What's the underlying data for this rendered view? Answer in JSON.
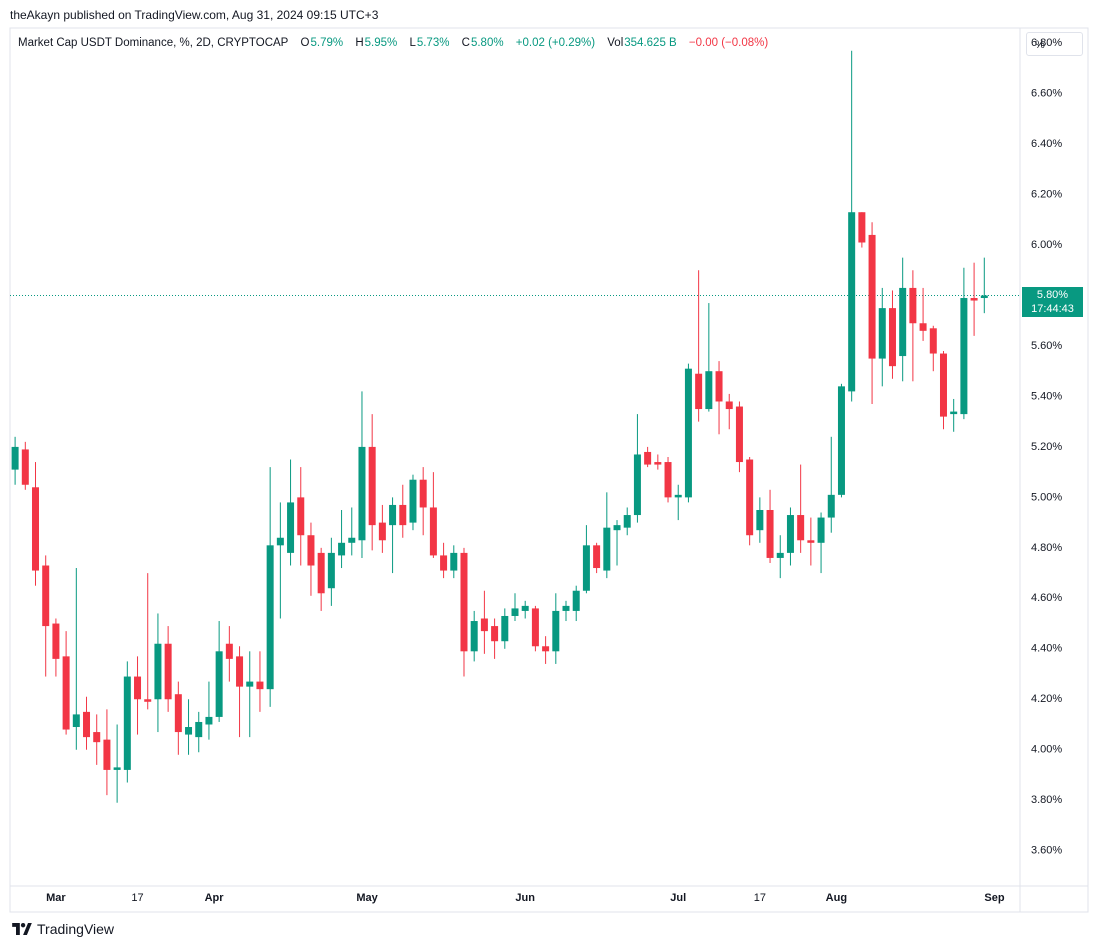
{
  "header": "theAkayn published on TradingView.com, Aug 31, 2024 09:15 UTC+3",
  "footer": "TradingView",
  "chart_data": {
    "type": "candlestick",
    "title": "Market Cap USDT Dominance, %, 2D, CRYPTOCAP",
    "legend": {
      "o_label": "O",
      "o": "5.79%",
      "h_label": "H",
      "h": "5.95%",
      "l_label": "L",
      "l": "5.73%",
      "c_label": "C",
      "c": "5.80%",
      "change": "+0.02 (+0.29%)",
      "vol_label": "Vol",
      "vol": "354.625 B",
      "vol_change": "−0.00 (−0.08%)"
    },
    "scale_button": "%",
    "up_color": "#089981",
    "down_color": "#f23645",
    "x": [
      "02-22",
      "02-24",
      "02-26",
      "02-28",
      "03-01",
      "03-03",
      "03-05",
      "03-07",
      "03-09",
      "03-11",
      "03-13",
      "03-15",
      "03-17",
      "03-19",
      "03-21",
      "03-23",
      "03-25",
      "03-27",
      "03-29",
      "03-31",
      "04-02",
      "04-04",
      "04-06",
      "04-08",
      "04-10",
      "04-12",
      "04-14",
      "04-16",
      "04-18",
      "04-20",
      "04-22",
      "04-24",
      "04-26",
      "04-28",
      "04-30",
      "05-02",
      "05-04",
      "05-06",
      "05-08",
      "05-10",
      "05-12",
      "05-14",
      "05-16",
      "05-18",
      "05-20",
      "05-22",
      "05-24",
      "05-26",
      "05-28",
      "05-30",
      "06-01",
      "06-03",
      "06-05",
      "06-07",
      "06-09",
      "06-11",
      "06-13",
      "06-15",
      "06-17",
      "06-19",
      "06-21",
      "06-23",
      "06-25",
      "06-27",
      "06-29",
      "07-01",
      "07-03",
      "07-05",
      "07-07",
      "07-09",
      "07-11",
      "07-13",
      "07-15",
      "07-17",
      "07-19",
      "07-21",
      "07-23",
      "07-25",
      "07-27",
      "07-29",
      "07-31",
      "08-02",
      "08-04",
      "08-06",
      "08-08",
      "08-10",
      "08-12",
      "08-14",
      "08-16",
      "08-18",
      "08-20",
      "08-22",
      "08-24",
      "08-26",
      "08-28",
      "08-30"
    ],
    "open": [
      5.11,
      5.19,
      5.04,
      4.73,
      4.5,
      4.37,
      4.09,
      4.15,
      4.07,
      4.04,
      3.92,
      3.92,
      4.29,
      4.2,
      4.2,
      4.42,
      4.22,
      4.06,
      4.05,
      4.1,
      4.13,
      4.42,
      4.37,
      4.25,
      4.27,
      4.24,
      4.81,
      4.78,
      5.0,
      4.85,
      4.78,
      4.64,
      4.77,
      4.82,
      4.83,
      5.2,
      4.9,
      4.89,
      4.97,
      4.9,
      5.07,
      4.96,
      4.77,
      4.71,
      4.78,
      4.39,
      4.52,
      4.49,
      4.43,
      4.53,
      4.55,
      4.56,
      4.41,
      4.39,
      4.55,
      4.55,
      4.63,
      4.81,
      4.71,
      4.87,
      4.88,
      4.93,
      5.18,
      5.14,
      5.14,
      5.0,
      5.0,
      5.49,
      5.35,
      5.5,
      5.38,
      5.36,
      5.15,
      4.87,
      4.95,
      4.76,
      4.78,
      4.93,
      4.83,
      4.82,
      4.92,
      5.01,
      5.42,
      6.13,
      6.04,
      5.55,
      5.75,
      5.56,
      5.83,
      5.69,
      5.67,
      5.57,
      5.33,
      5.33,
      5.79,
      5.79
    ],
    "high": [
      5.24,
      5.22,
      5.14,
      4.77,
      4.52,
      4.47,
      4.72,
      4.21,
      4.14,
      4.16,
      4.1,
      4.35,
      4.37,
      4.7,
      4.54,
      4.49,
      4.27,
      4.2,
      4.15,
      4.27,
      4.51,
      4.49,
      4.41,
      4.39,
      4.39,
      5.12,
      4.98,
      5.15,
      5.12,
      4.9,
      4.8,
      4.84,
      4.95,
      4.96,
      5.42,
      5.33,
      4.97,
      5.0,
      5.05,
      5.09,
      5.12,
      5.1,
      4.82,
      4.81,
      4.8,
      4.55,
      4.63,
      4.52,
      4.56,
      4.62,
      4.59,
      4.57,
      4.45,
      4.62,
      4.59,
      4.65,
      4.89,
      4.82,
      5.02,
      4.91,
      4.96,
      5.33,
      5.2,
      5.17,
      5.16,
      5.05,
      5.53,
      5.9,
      5.77,
      5.54,
      5.41,
      5.38,
      5.16,
      5.0,
      5.03,
      4.85,
      4.96,
      5.13,
      4.92,
      4.94,
      5.24,
      5.45,
      6.77,
      6.13,
      6.09,
      5.83,
      5.82,
      5.95,
      5.9,
      5.83,
      5.68,
      5.58,
      5.39,
      5.91,
      5.93,
      5.95
    ],
    "low": [
      5.05,
      5.03,
      4.65,
      4.29,
      4.29,
      4.06,
      4.0,
      4.0,
      3.94,
      3.82,
      3.79,
      3.87,
      4.06,
      4.16,
      4.07,
      4.15,
      3.98,
      3.98,
      3.99,
      4.04,
      4.11,
      4.27,
      4.05,
      4.05,
      4.15,
      4.17,
      4.52,
      4.73,
      4.73,
      4.61,
      4.55,
      4.57,
      4.72,
      4.77,
      4.76,
      4.79,
      4.78,
      4.7,
      4.84,
      4.87,
      4.85,
      4.76,
      4.68,
      4.68,
      4.29,
      4.35,
      4.38,
      4.36,
      4.4,
      4.51,
      4.52,
      4.39,
      4.34,
      4.34,
      4.51,
      4.51,
      4.62,
      4.7,
      4.68,
      4.73,
      4.85,
      4.9,
      5.12,
      5.11,
      4.98,
      4.91,
      4.98,
      5.3,
      5.34,
      5.25,
      5.27,
      5.1,
      4.81,
      4.82,
      4.74,
      4.68,
      4.73,
      4.78,
      4.73,
      4.7,
      4.86,
      5.0,
      5.38,
      5.99,
      5.37,
      5.44,
      5.47,
      5.46,
      5.46,
      5.62,
      5.5,
      5.27,
      5.26,
      5.31,
      5.64,
      5.73
    ],
    "close": [
      5.2,
      5.05,
      4.71,
      4.49,
      4.36,
      4.08,
      4.14,
      4.05,
      4.03,
      3.92,
      3.93,
      4.29,
      4.2,
      4.19,
      4.42,
      4.2,
      4.07,
      4.09,
      4.11,
      4.13,
      4.39,
      4.36,
      4.25,
      4.27,
      4.24,
      4.81,
      4.84,
      4.98,
      4.85,
      4.73,
      4.62,
      4.78,
      4.82,
      4.84,
      5.2,
      4.89,
      4.83,
      4.97,
      4.89,
      5.07,
      4.96,
      4.77,
      4.71,
      4.78,
      4.39,
      4.51,
      4.47,
      4.43,
      4.53,
      4.56,
      4.57,
      4.41,
      4.39,
      4.55,
      4.57,
      4.63,
      4.81,
      4.72,
      4.88,
      4.89,
      4.93,
      5.17,
      5.13,
      5.13,
      5.0,
      5.01,
      5.51,
      5.35,
      5.5,
      5.38,
      5.35,
      5.14,
      4.85,
      4.95,
      4.76,
      4.78,
      4.93,
      4.83,
      4.82,
      4.92,
      5.01,
      5.44,
      6.13,
      6.01,
      5.55,
      5.75,
      5.52,
      5.83,
      5.69,
      5.66,
      5.57,
      5.32,
      5.34,
      5.79,
      5.78,
      5.8
    ],
    "xlim": [
      "02-21",
      "09-06"
    ],
    "xticks": [
      {
        "value": "03-01",
        "label": "Mar"
      },
      {
        "value": "03-17",
        "label": "17"
      },
      {
        "value": "04-01",
        "label": "Apr"
      },
      {
        "value": "05-01",
        "label": "May"
      },
      {
        "value": "06-01",
        "label": "Jun"
      },
      {
        "value": "07-01",
        "label": "Jul"
      },
      {
        "value": "07-17",
        "label": "17"
      },
      {
        "value": "08-01",
        "label": "Aug"
      },
      {
        "value": "09-01",
        "label": "Sep"
      }
    ],
    "ylim": [
      3.46,
      6.86
    ],
    "yticks": [
      {
        "value": 3.6,
        "label": "3.60%"
      },
      {
        "value": 3.8,
        "label": "3.80%"
      },
      {
        "value": 4.0,
        "label": "4.00%"
      },
      {
        "value": 4.2,
        "label": "4.20%"
      },
      {
        "value": 4.4,
        "label": "4.40%"
      },
      {
        "value": 4.6,
        "label": "4.60%"
      },
      {
        "value": 4.8,
        "label": "4.80%"
      },
      {
        "value": 5.0,
        "label": "5.00%"
      },
      {
        "value": 5.2,
        "label": "5.20%"
      },
      {
        "value": 5.4,
        "label": "5.40%"
      },
      {
        "value": 5.6,
        "label": "5.60%"
      },
      {
        "value": 5.8,
        "label": "5.80%"
      },
      {
        "value": 6.0,
        "label": "6.00%"
      },
      {
        "value": 6.2,
        "label": "6.20%"
      },
      {
        "value": 6.4,
        "label": "6.40%"
      },
      {
        "value": 6.6,
        "label": "6.60%"
      },
      {
        "value": 6.8,
        "label": "6.80%"
      }
    ],
    "grid": true,
    "price_line": {
      "value": 5.8,
      "label": "5.80%",
      "countdown": "17:44:43",
      "color": "#089981"
    }
  }
}
